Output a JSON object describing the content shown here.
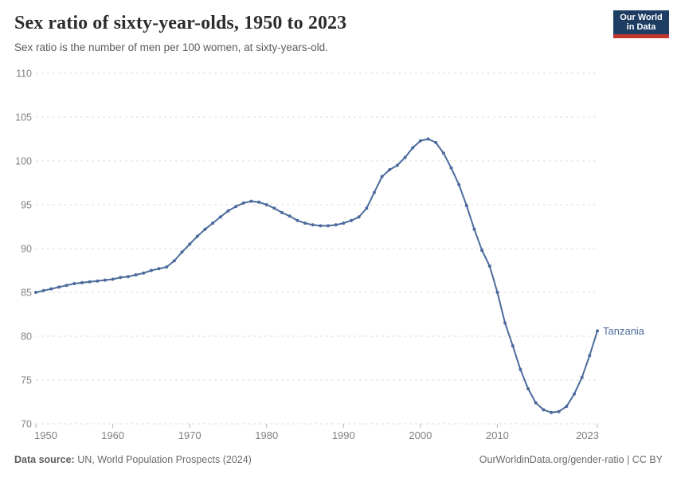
{
  "header": {
    "title": "Sex ratio of sixty-year-olds, 1950 to 2023",
    "subtitle": "Sex ratio is the number of men per 100 women, at sixty-years-old.",
    "logo_line1": "Our World",
    "logo_line2": "in Data"
  },
  "footer": {
    "source_label": "Data source:",
    "source_value": " UN, World Population Prospects (2024)",
    "rights": "OurWorldinData.org/gender-ratio | CC BY"
  },
  "colors": {
    "line": "#4c6a9c",
    "entity_label": "#4c6a9c",
    "grid": "#dedede",
    "tick_mark": "#b5b5b5",
    "tick_text": "#828282",
    "logo_bg": "#1d3d63",
    "logo_bar": "#c0372e"
  },
  "chart_data": {
    "type": "line",
    "title": "Sex ratio of sixty-year-olds, 1950 to 2023",
    "xlabel": "",
    "ylabel": "",
    "ylim": [
      70,
      110
    ],
    "yticks": [
      70,
      75,
      80,
      85,
      90,
      95,
      100,
      105,
      110
    ],
    "xticks": [
      1950,
      1960,
      1970,
      1980,
      1990,
      2000,
      2010,
      2023
    ],
    "grid": "dashed-horizontal",
    "legend_position": "end-of-line-label",
    "x": [
      1950,
      1951,
      1952,
      1953,
      1954,
      1955,
      1956,
      1957,
      1958,
      1959,
      1960,
      1961,
      1962,
      1963,
      1964,
      1965,
      1966,
      1967,
      1968,
      1969,
      1970,
      1971,
      1972,
      1973,
      1974,
      1975,
      1976,
      1977,
      1978,
      1979,
      1980,
      1981,
      1982,
      1983,
      1984,
      1985,
      1986,
      1987,
      1988,
      1989,
      1990,
      1991,
      1992,
      1993,
      1994,
      1995,
      1996,
      1997,
      1998,
      1999,
      2000,
      2001,
      2002,
      2003,
      2004,
      2005,
      2006,
      2007,
      2008,
      2009,
      2010,
      2011,
      2012,
      2013,
      2014,
      2015,
      2016,
      2017,
      2018,
      2019,
      2020,
      2021,
      2022,
      2023
    ],
    "series": [
      {
        "name": "Tanzania",
        "values": [
          85.0,
          85.2,
          85.4,
          85.6,
          85.8,
          86.0,
          86.1,
          86.2,
          86.3,
          86.4,
          86.5,
          86.7,
          86.8,
          87.0,
          87.2,
          87.5,
          87.7,
          87.9,
          88.6,
          89.6,
          90.5,
          91.4,
          92.2,
          92.9,
          93.6,
          94.3,
          94.8,
          95.2,
          95.4,
          95.3,
          95.0,
          94.6,
          94.1,
          93.7,
          93.2,
          92.9,
          92.7,
          92.6,
          92.6,
          92.7,
          92.9,
          93.2,
          93.6,
          94.6,
          96.4,
          98.2,
          99.0,
          99.5,
          100.4,
          101.5,
          102.3,
          102.5,
          102.1,
          100.9,
          99.2,
          97.3,
          94.9,
          92.2,
          89.8,
          88.0,
          85.0,
          81.5,
          78.9,
          76.2,
          74.0,
          72.4,
          71.6,
          71.3,
          71.4,
          72.0,
          73.4,
          75.3,
          77.8,
          80.6
        ]
      }
    ]
  }
}
